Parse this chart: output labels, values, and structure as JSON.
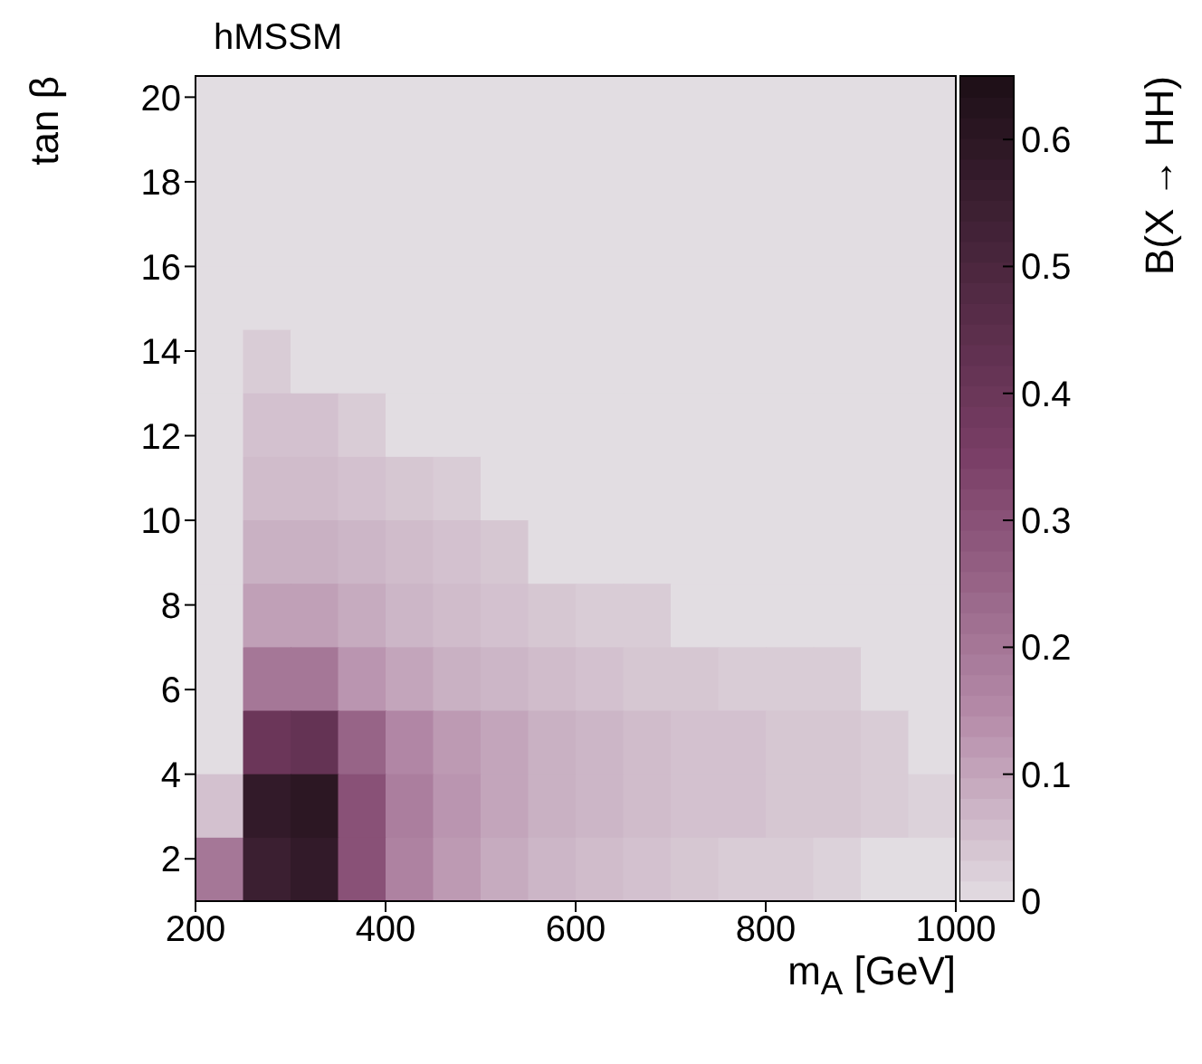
{
  "chart_data": {
    "type": "heatmap",
    "title": "hMSSM",
    "xlabel": "m$_{A}$ [GeV]",
    "ylabel": "tan β",
    "clabel": "B(X → HH)",
    "x": [
      225,
      275,
      325,
      375,
      425,
      475,
      525,
      575,
      625,
      675,
      725,
      775,
      825,
      875,
      925,
      975
    ],
    "y": [
      19.75,
      18.25,
      16.75,
      15.25,
      13.75,
      12.25,
      10.75,
      9.25,
      7.75,
      6.25,
      4.75,
      3.25,
      1.75
    ],
    "xlim": [
      200,
      1000
    ],
    "xticks": [
      200,
      400,
      600,
      800,
      1000
    ],
    "ylim": [
      1,
      20.5
    ],
    "yticks": [
      2,
      4,
      6,
      8,
      10,
      12,
      14,
      16,
      18,
      20
    ],
    "clim": [
      0,
      0.65
    ],
    "cticks": [
      0,
      0.1,
      0.2,
      0.3,
      0.4,
      0.5,
      0.6
    ],
    "cells": [
      [
        0,
        0,
        0,
        0,
        0,
        0,
        0,
        0,
        0,
        0,
        0,
        0,
        0,
        0,
        0,
        0
      ],
      [
        0,
        0,
        0,
        0,
        0,
        0,
        0,
        0,
        0,
        0,
        0,
        0,
        0,
        0,
        0,
        0
      ],
      [
        0,
        0,
        0,
        0,
        0,
        0,
        0,
        0,
        0,
        0,
        0,
        0,
        0,
        0,
        0,
        0
      ],
      [
        0,
        0,
        0,
        0,
        0,
        0,
        0,
        0,
        0,
        0,
        0,
        0,
        0,
        0,
        0,
        0
      ],
      [
        0,
        0.03,
        0,
        0,
        0,
        0,
        0,
        0,
        0,
        0,
        0,
        0,
        0,
        0,
        0,
        0
      ],
      [
        0,
        0.05,
        0.05,
        0.03,
        0,
        0,
        0,
        0,
        0,
        0,
        0,
        0,
        0,
        0,
        0,
        0
      ],
      [
        0,
        0.06,
        0.06,
        0.05,
        0.04,
        0.03,
        0,
        0,
        0,
        0,
        0,
        0,
        0,
        0,
        0,
        0
      ],
      [
        0,
        0.08,
        0.08,
        0.07,
        0.06,
        0.05,
        0.04,
        0,
        0,
        0,
        0,
        0,
        0,
        0,
        0,
        0
      ],
      [
        0,
        0.11,
        0.11,
        0.09,
        0.07,
        0.06,
        0.05,
        0.04,
        0.03,
        0.03,
        0,
        0,
        0,
        0,
        0,
        0
      ],
      [
        0,
        0.2,
        0.2,
        0.13,
        0.1,
        0.08,
        0.07,
        0.06,
        0.05,
        0.04,
        0.04,
        0.03,
        0.03,
        0.03,
        0,
        0
      ],
      [
        0,
        0.4,
        0.42,
        0.25,
        0.16,
        0.12,
        0.1,
        0.08,
        0.07,
        0.06,
        0.05,
        0.05,
        0.04,
        0.04,
        0.03,
        0
      ],
      [
        0.05,
        0.58,
        0.6,
        0.3,
        0.18,
        0.13,
        0.1,
        0.08,
        0.07,
        0.06,
        0.05,
        0.05,
        0.04,
        0.04,
        0.03,
        0.02
      ],
      [
        0.2,
        0.55,
        0.58,
        0.3,
        0.17,
        0.12,
        0.09,
        0.07,
        0.06,
        0.05,
        0.04,
        0.03,
        0.03,
        0.02,
        0,
        0
      ]
    ]
  }
}
